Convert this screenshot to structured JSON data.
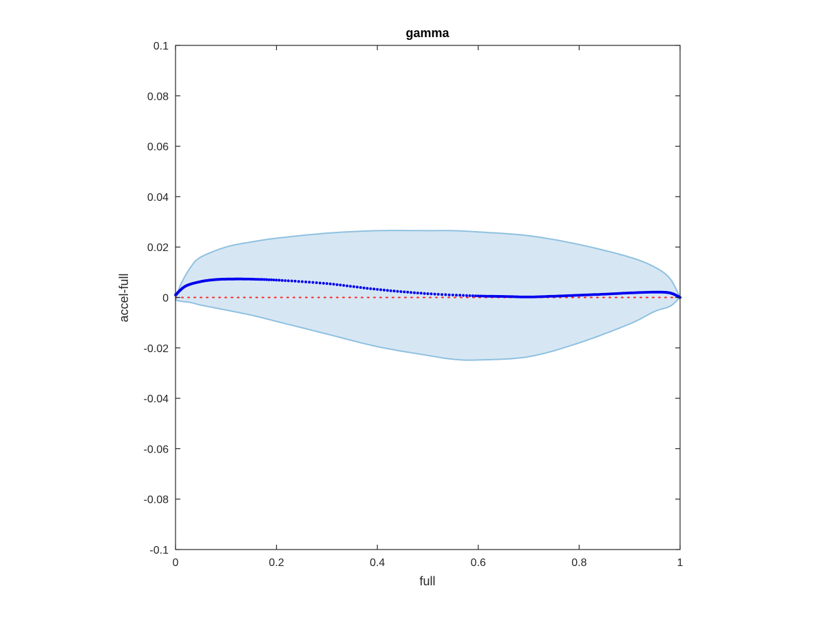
{
  "chart_data": {
    "type": "line",
    "title": "gamma",
    "xlabel": "full",
    "ylabel": "accel-full",
    "xlim": [
      0,
      1
    ],
    "ylim": [
      -0.1,
      0.1
    ],
    "xticks": [
      "0",
      "0.2",
      "0.4",
      "0.6",
      "0.8",
      "1"
    ],
    "yticks": [
      "0.1",
      "0.08",
      "0.06",
      "0.04",
      "0.02",
      "0",
      "-0.02",
      "-0.04",
      "-0.06",
      "-0.08",
      "-0.1"
    ],
    "grid": false,
    "colors": {
      "band_fill": "#d6e7f3",
      "band_stroke": "#8fc0e0",
      "series": "#0000ee",
      "reference": "#ff2020",
      "axes": "#262626"
    },
    "band": {
      "x": [
        0,
        0.01,
        0.03,
        0.05,
        0.1,
        0.15,
        0.2,
        0.3,
        0.4,
        0.5,
        0.55,
        0.6,
        0.7,
        0.8,
        0.9,
        0.95,
        0.98,
        1.0
      ],
      "upper": [
        -0.001,
        0.005,
        0.012,
        0.016,
        0.02,
        0.022,
        0.0235,
        0.0255,
        0.0265,
        0.0265,
        0.0265,
        0.026,
        0.0245,
        0.021,
        0.016,
        0.012,
        0.0075,
        0
      ],
      "lower": [
        -0.001,
        -0.0015,
        -0.002,
        -0.003,
        -0.005,
        -0.007,
        -0.0095,
        -0.0145,
        -0.0195,
        -0.023,
        -0.0245,
        -0.0248,
        -0.0235,
        -0.018,
        -0.0105,
        -0.0055,
        -0.0035,
        0
      ]
    },
    "series": [
      {
        "x": [
          0,
          0.02,
          0.05,
          0.08,
          0.11,
          0.14,
          0.2,
          0.3,
          0.4,
          0.5,
          0.6,
          0.65,
          0.7,
          0.75,
          0.8,
          0.85,
          0.9,
          0.95,
          0.98,
          1.0
        ],
        "y": [
          0.001,
          0.0045,
          0.0063,
          0.0071,
          0.0073,
          0.0073,
          0.0069,
          0.0055,
          0.0032,
          0.0015,
          0.0006,
          0.0004,
          0.0002,
          0.0005,
          0.0009,
          0.0013,
          0.0018,
          0.0021,
          0.0018,
          0
        ]
      }
    ],
    "reference_line": {
      "y": 0
    }
  }
}
